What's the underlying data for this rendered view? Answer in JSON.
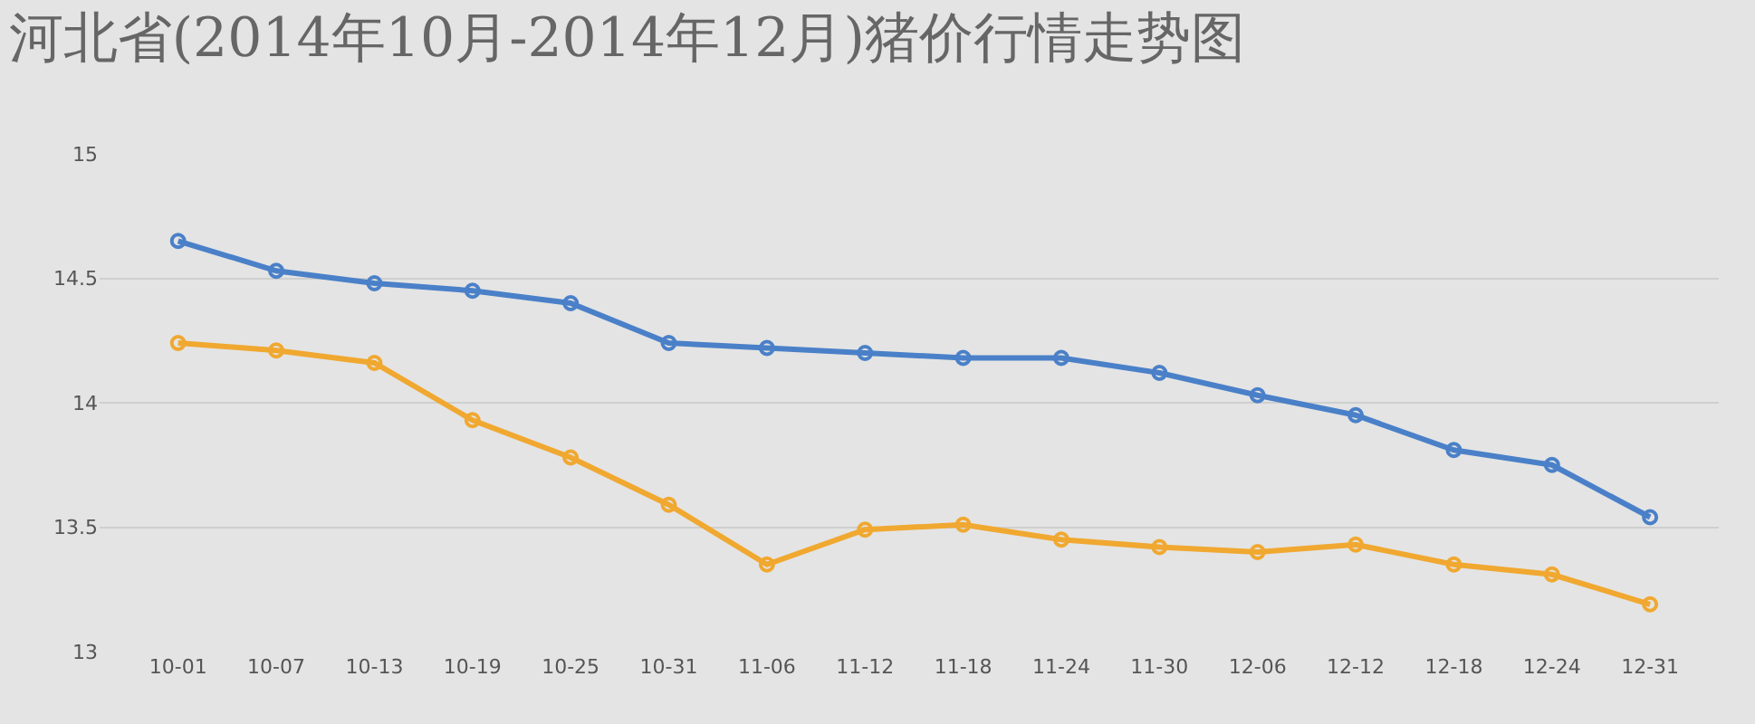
{
  "chart_data": {
    "type": "line",
    "title": "河北省(2014年10月-2014年12月)猪价行情走势图",
    "categories": [
      "10-01",
      "10-07",
      "10-13",
      "10-19",
      "10-25",
      "10-31",
      "11-06",
      "11-12",
      "11-18",
      "11-24",
      "11-30",
      "12-06",
      "12-12",
      "12-18",
      "12-24",
      "12-31"
    ],
    "series": [
      {
        "color": "#4a80c8",
        "values": [
          14.65,
          14.53,
          14.48,
          14.45,
          14.4,
          14.24,
          14.22,
          14.2,
          14.18,
          14.18,
          14.12,
          14.03,
          13.95,
          13.81,
          13.75,
          13.54
        ]
      },
      {
        "color": "#f0a830",
        "values": [
          14.24,
          14.21,
          14.16,
          13.93,
          13.78,
          13.59,
          13.35,
          13.49,
          13.51,
          13.45,
          13.42,
          13.4,
          13.43,
          13.35,
          13.31,
          13.19
        ]
      }
    ],
    "ylim": [
      13,
      15
    ],
    "yticks": [
      13,
      13.5,
      14,
      14.5,
      15
    ],
    "grid": "y",
    "marker": "circle",
    "line_style": "solid"
  }
}
